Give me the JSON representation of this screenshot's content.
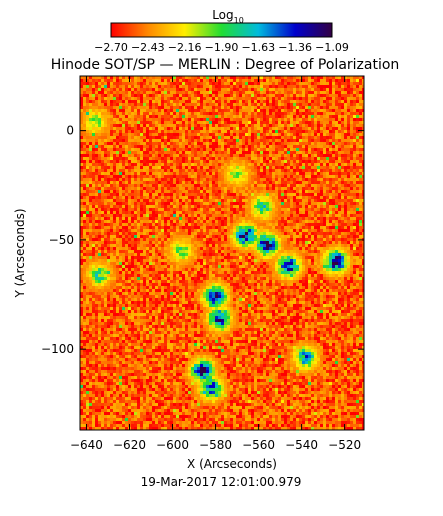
{
  "chart_data": {
    "type": "heatmap",
    "title": "Hinode SOT/SP — MERLIN : Degree of Polarization",
    "xlabel": "X (Arcseconds)",
    "ylabel": "Y (Arcseconds)",
    "xlim": [
      -643,
      -511
    ],
    "ylim": [
      -137,
      25
    ],
    "xticks": [
      -640,
      -620,
      -600,
      -580,
      -560,
      -540,
      -520
    ],
    "yticks": [
      0,
      -50,
      -100
    ],
    "colorbar": {
      "label_base": "Log",
      "label_sub": "10",
      "ticks": [
        "-2.70",
        "-2.43",
        "-2.16",
        "-1.90",
        "-1.63",
        "-1.36",
        "-1.09"
      ],
      "range": [
        -2.7,
        -1.09
      ],
      "colormap": [
        "#ff0000",
        "#ff8800",
        "#ffee00",
        "#22dd33",
        "#00bbdd",
        "#0000cc",
        "#330044"
      ]
    },
    "timestamp": "19-Mar-2017  12:01:00.979",
    "background_level": -2.52,
    "features": [
      {
        "x": -566,
        "y": -48,
        "level": -1.25
      },
      {
        "x": -556,
        "y": -52,
        "level": -1.2
      },
      {
        "x": -546,
        "y": -62,
        "level": -1.3
      },
      {
        "x": -524,
        "y": -60,
        "level": -1.15
      },
      {
        "x": -580,
        "y": -76,
        "level": -1.25
      },
      {
        "x": -578,
        "y": -86,
        "level": -1.3
      },
      {
        "x": -586,
        "y": -110,
        "level": -1.22
      },
      {
        "x": -582,
        "y": -118,
        "level": -1.35
      },
      {
        "x": -558,
        "y": -35,
        "level": -1.75
      },
      {
        "x": -596,
        "y": -55,
        "level": -1.85
      },
      {
        "x": -634,
        "y": -66,
        "level": -1.8
      },
      {
        "x": -636,
        "y": 4,
        "level": -1.95
      },
      {
        "x": -538,
        "y": -104,
        "level": -1.55
      },
      {
        "x": -570,
        "y": -20,
        "level": -1.95
      }
    ]
  }
}
